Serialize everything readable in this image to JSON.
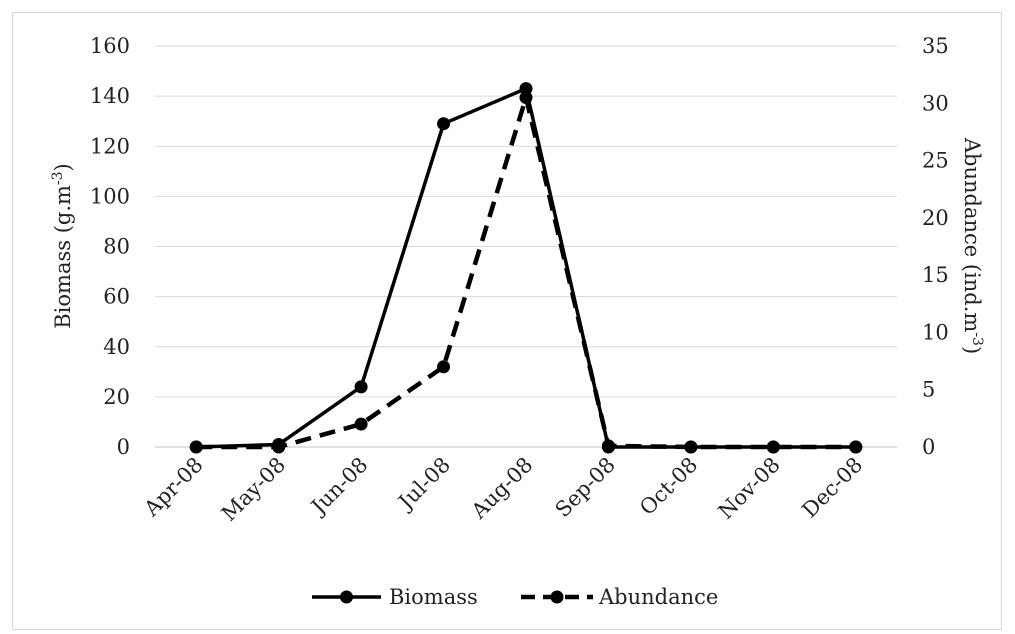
{
  "chart_data": {
    "type": "line",
    "categories": [
      "Apr-08",
      "May-08",
      "Jun-08",
      "Jul-08",
      "Aug-08",
      "Sep-08",
      "Oct-08",
      "Nov-08",
      "Dec-08"
    ],
    "series": [
      {
        "name": "Biomass",
        "axis": "left",
        "line_style": "solid",
        "color": "#000000",
        "values": [
          0,
          1,
          24,
          129,
          143,
          0,
          0,
          0,
          0
        ]
      },
      {
        "name": "Abundance",
        "axis": "right",
        "line_style": "dashed",
        "color": "#000000",
        "values": [
          0,
          0,
          2,
          7,
          30.5,
          0.1,
          0,
          0,
          0
        ]
      }
    ],
    "y_left": {
      "label": "Biomass (g.m",
      "label_sup": "-3",
      "label_end": ")",
      "ylim": [
        0,
        160
      ],
      "ticks": [
        "0",
        "20",
        "40",
        "60",
        "80",
        "100",
        "120",
        "140",
        "160"
      ]
    },
    "y_right": {
      "label": "Abundance (ind.m",
      "label_sup": "-3",
      "label_end": ")",
      "ylim": [
        0,
        35
      ],
      "ticks": [
        "0",
        "5",
        "10",
        "15",
        "20",
        "25",
        "30",
        "35"
      ]
    },
    "grid": true,
    "legend_position": "bottom"
  }
}
